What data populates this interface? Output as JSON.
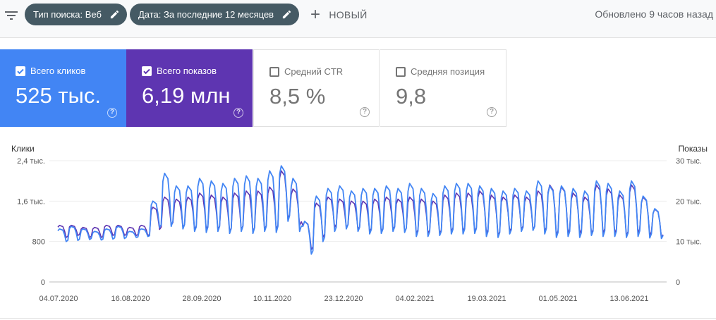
{
  "toolbar": {
    "filter_icon": "filter-icon",
    "chips": [
      {
        "label": "Тип поиска: Веб"
      },
      {
        "label": "Дата: За последние 12 месяцев"
      }
    ],
    "new_label": "НОВЫЙ",
    "updated": "Обновлено 9 часов назад"
  },
  "metrics": [
    {
      "label": "Всего кликов",
      "value": "525 тыс.",
      "checked": true,
      "color": "#4285f4"
    },
    {
      "label": "Всего показов",
      "value": "6,19 млн",
      "checked": true,
      "color": "#5e35b1"
    },
    {
      "label": "Средний CTR",
      "value": "8,5 %",
      "checked": false
    },
    {
      "label": "Средняя позиция",
      "value": "9,8",
      "checked": false
    }
  ],
  "chart": {
    "left_axis_title": "Клики",
    "right_axis_title": "Показы",
    "left_ticks": [
      "2,4 тыс.",
      "1,6 тыс.",
      "800",
      "0"
    ],
    "right_ticks": [
      "30 тыс.",
      "20 тыс.",
      "10 тыс.",
      "0"
    ],
    "x_ticks": [
      "04.07.2020",
      "16.08.2020",
      "28.09.2020",
      "10.11.2020",
      "23.12.2020",
      "04.02.2021",
      "19.03.2021",
      "01.05.2021",
      "13.06.2021"
    ]
  },
  "chart_data": {
    "type": "line",
    "x_start": "04.07.2020",
    "x_end": "30.06.2021",
    "ylim_left": [
      0,
      2400
    ],
    "ylim_right": [
      0,
      30000
    ],
    "series": [
      {
        "name": "Всего кликов",
        "axis": "left",
        "color": "#4285f4",
        "weekly_low": [
          800,
          820,
          840,
          830,
          850,
          860,
          880,
          900,
          1080,
          1100,
          1050,
          1000,
          980,
          1000,
          960,
          1000,
          960,
          1000,
          980,
          1200,
          1000,
          550,
          800,
          1000,
          1050,
          1000,
          950,
          960,
          1000,
          980,
          900,
          900,
          920,
          950,
          950,
          960,
          900,
          880,
          950,
          1000,
          1020,
          950,
          880,
          900,
          880,
          920,
          900,
          900,
          880,
          900,
          870,
          860
        ],
        "weekly_high": [
          1050,
          1100,
          1050,
          1000,
          1050,
          1100,
          1000,
          1050,
          1600,
          2150,
          1900,
          1900,
          2050,
          2000,
          1950,
          2050,
          2100,
          2050,
          2200,
          2300,
          2050,
          1200,
          1700,
          1850,
          1900,
          1800,
          1850,
          1850,
          1900,
          1850,
          1950,
          1850,
          1750,
          1900,
          1950,
          1950,
          1900,
          1850,
          1800,
          1850,
          1800,
          2000,
          1900,
          1900,
          1850,
          1800,
          2000,
          1950,
          1800,
          2000,
          1700,
          1450
        ]
      },
      {
        "name": "Всего показов",
        "axis": "right",
        "color": "#5e35b1",
        "weekly_low": [
          11000,
          11500,
          11000,
          11000,
          11500,
          11500,
          11500,
          11500,
          13000,
          14000,
          13500,
          13000,
          13000,
          13000,
          12500,
          13000,
          12500,
          13000,
          13000,
          15500,
          14000,
          8000,
          11000,
          13500,
          13500,
          13000,
          12500,
          12500,
          13000,
          12500,
          12000,
          12000,
          12000,
          12500,
          12500,
          12500,
          12000,
          11500,
          12500,
          13000,
          13000,
          12500,
          11500,
          12000,
          12000,
          12000,
          12000,
          12000,
          11500,
          12000,
          11500,
          11000
        ],
        "weekly_high": [
          14000,
          14000,
          13500,
          13500,
          14000,
          14000,
          13500,
          14000,
          18500,
          21000,
          20500,
          21000,
          22000,
          21500,
          21000,
          22000,
          22500,
          22500,
          23500,
          27500,
          23000,
          15000,
          19500,
          21000,
          20500,
          20000,
          20000,
          20500,
          21000,
          20500,
          21000,
          20500,
          20000,
          21500,
          22000,
          22000,
          22500,
          21500,
          21000,
          21500,
          21000,
          22500,
          24000,
          23500,
          22000,
          21000,
          24000,
          23000,
          21500,
          24000,
          21000,
          18000
        ]
      }
    ]
  }
}
